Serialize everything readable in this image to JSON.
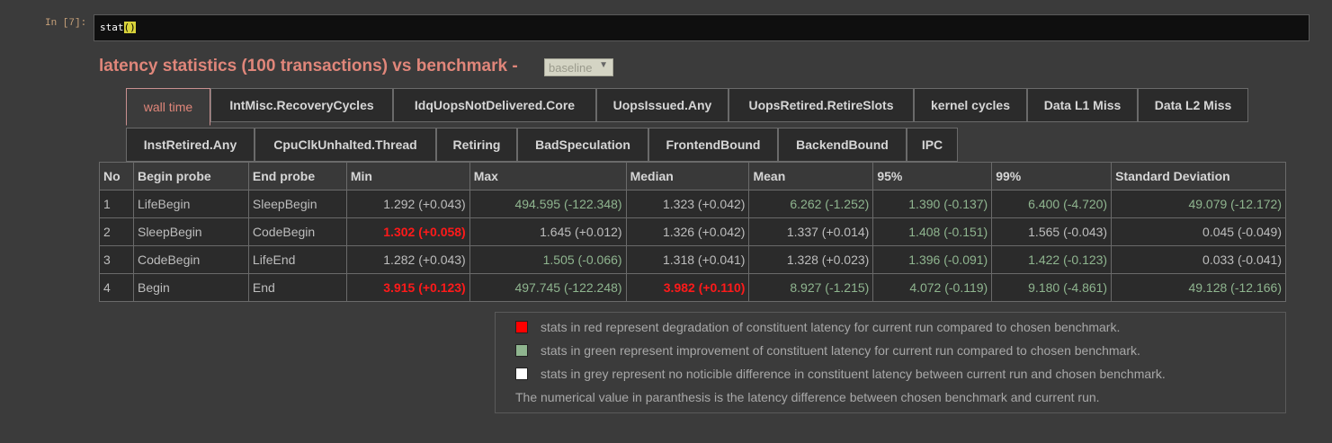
{
  "cell": {
    "prompt": "In [7]:",
    "code_prefix": "stat",
    "code_parens": "()"
  },
  "header": {
    "title": "latency statistics (100 transactions) vs benchmark -",
    "benchmark_select": "baseline"
  },
  "tabs_row1": [
    "wall time",
    "IntMisc.RecoveryCycles",
    "IdqUopsNotDelivered.Core",
    "UopsIssued.Any",
    "UopsRetired.RetireSlots",
    "kernel cycles",
    "Data L1 Miss",
    "Data L2 Miss"
  ],
  "tabs_row2": [
    "InstRetired.Any",
    "CpuClkUnhalted.Thread",
    "Retiring",
    "BadSpeculation",
    "FrontendBound",
    "BackendBound",
    "IPC"
  ],
  "table": {
    "headers": [
      "No",
      "Begin probe",
      "End probe",
      "Min",
      "Max",
      "Median",
      "Mean",
      "95%",
      "99%",
      "Standard Deviation"
    ],
    "rows": [
      [
        "1",
        "LifeBegin",
        "SleepBegin",
        "1.292 (+0.043)",
        "494.595 (-122.348)",
        "1.323 (+0.042)",
        "6.262 (-1.252)",
        "1.390 (-0.137)",
        "6.400 (-4.720)",
        "49.079 (-12.172)"
      ],
      [
        "2",
        "SleepBegin",
        "CodeBegin",
        "1.302 (+0.058)",
        "1.645 (+0.012)",
        "1.326 (+0.042)",
        "1.337 (+0.014)",
        "1.408 (-0.151)",
        "1.565 (-0.043)",
        "0.045 (-0.049)"
      ],
      [
        "3",
        "CodeBegin",
        "LifeEnd",
        "1.282 (+0.043)",
        "1.505 (-0.066)",
        "1.318 (+0.041)",
        "1.328 (+0.023)",
        "1.396 (-0.091)",
        "1.422 (-0.123)",
        "0.033 (-0.041)"
      ],
      [
        "4",
        "Begin",
        "End",
        "3.915 (+0.123)",
        "497.745 (-122.248)",
        "3.982 (+0.110)",
        "8.927 (-1.215)",
        "4.072 (-0.119)",
        "9.180 (-4.861)",
        "49.128 (-12.166)"
      ]
    ],
    "classes": [
      [
        "grey",
        "green",
        "grey",
        "green",
        "green",
        "green",
        "green"
      ],
      [
        "red",
        "grey",
        "grey",
        "grey",
        "green",
        "grey",
        "grey"
      ],
      [
        "grey",
        "green",
        "grey",
        "grey",
        "green",
        "green",
        "grey"
      ],
      [
        "red",
        "green",
        "red",
        "green",
        "green",
        "green",
        "green"
      ]
    ]
  },
  "legend": {
    "red_text": "stats in red represent degradation of constituent latency for current run compared to chosen benchmark.",
    "green_text": "stats in green represent improvement of constituent latency for current run compared to chosen benchmark.",
    "grey_text": "stats in grey represent no noticible difference in constituent latency between current run and chosen benchmark.",
    "note": "The numerical value in paranthesis is the latency difference between chosen benchmark and current run.",
    "colors": {
      "red": "#ff0000",
      "green": "#8fb58f",
      "grey": "#ffffff"
    }
  }
}
